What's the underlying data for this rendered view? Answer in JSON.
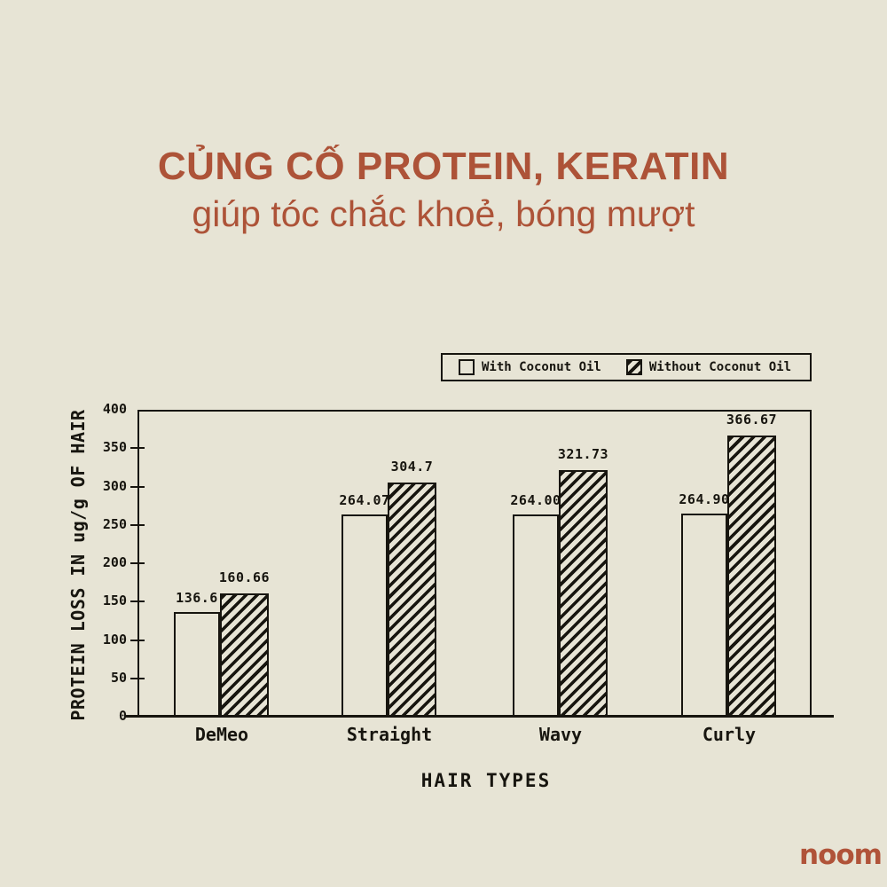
{
  "page": {
    "background_color": "#e7e4d5",
    "ink_color": "#17150f",
    "accent_color": "#ad5338"
  },
  "header": {
    "title": "CỦNG CỐ PROTEIN, KERATIN",
    "subtitle": "giúp tóc chắc khoẻ, bóng mượt"
  },
  "chart_data": {
    "type": "bar",
    "categories": [
      "DeMeo",
      "Straight",
      "Wavy",
      "Curly"
    ],
    "series": [
      {
        "name": "With Coconut Oil",
        "pattern": "plain",
        "values": [
          136.6,
          264.07,
          264.0,
          264.9
        ],
        "value_labels": [
          "136.6",
          "264.07",
          "264.00",
          "264.90"
        ]
      },
      {
        "name": "Without Coconut Oil",
        "pattern": "diagonal-hatch",
        "values": [
          160.66,
          304.7,
          321.73,
          366.67
        ],
        "value_labels": [
          "160.66",
          "304.7",
          "321.73",
          "366.67"
        ]
      }
    ],
    "xlabel": "HAIR TYPES",
    "ylabel": "PROTEIN LOSS IN ug/g OF HAIR",
    "ylim": [
      0,
      400
    ],
    "yticks": [
      0,
      50,
      100,
      150,
      200,
      250,
      300,
      350,
      400
    ],
    "ytick_labels": [
      "0",
      "50",
      "100",
      "150",
      "200",
      "250",
      "300",
      "350",
      "400"
    ],
    "legend_position": "top-right",
    "grid": false
  },
  "footer": {
    "logo_text": "noom",
    "logo_color": "#b05339"
  }
}
